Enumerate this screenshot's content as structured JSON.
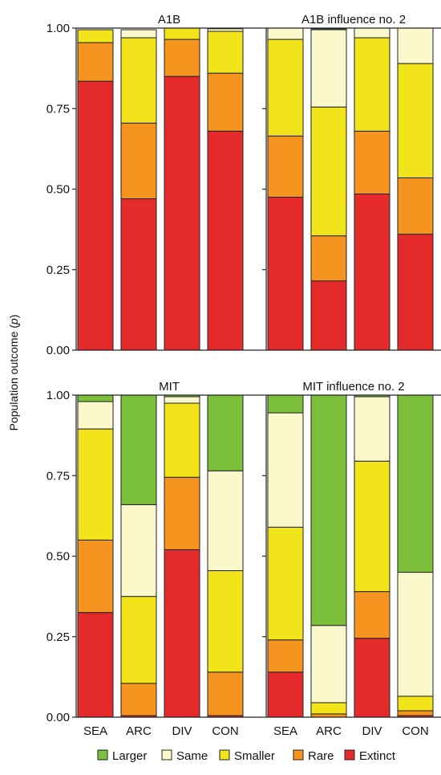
{
  "chart_data": {
    "type": "bar",
    "stacked": true,
    "ylabel_parts": [
      "Population outcome (",
      "p",
      ")"
    ],
    "categories": [
      "SEA",
      "ARC",
      "DIV",
      "CON"
    ],
    "yticks": [
      "0.00",
      "0.25",
      "0.50",
      "0.75",
      "1.00"
    ],
    "ylim": [
      0,
      1
    ],
    "legend": [
      {
        "name": "Larger",
        "color": "#7cbf3b"
      },
      {
        "name": "Same",
        "color": "#fbf8cc"
      },
      {
        "name": "Smaller",
        "color": "#f2e41b"
      },
      {
        "name": "Rare",
        "color": "#f5941f"
      },
      {
        "name": "Extinct",
        "color": "#e42a2a"
      }
    ],
    "panels": [
      {
        "title": "A1B",
        "series": [
          {
            "name": "Extinct",
            "values": [
              0.835,
              0.47,
              0.85,
              0.68
            ]
          },
          {
            "name": "Rare",
            "values": [
              0.12,
              0.235,
              0.115,
              0.18
            ]
          },
          {
            "name": "Smaller",
            "values": [
              0.04,
              0.265,
              0.035,
              0.13
            ]
          },
          {
            "name": "Same",
            "values": [
              0.0,
              0.025,
              0.0,
              0.008
            ]
          },
          {
            "name": "Larger",
            "values": [
              0.0,
              0.0,
              0.0,
              0.0
            ]
          }
        ]
      },
      {
        "title": "A1B influence no. 2",
        "series": [
          {
            "name": "Extinct",
            "values": [
              0.475,
              0.215,
              0.485,
              0.36
            ]
          },
          {
            "name": "Rare",
            "values": [
              0.19,
              0.14,
              0.195,
              0.175
            ]
          },
          {
            "name": "Smaller",
            "values": [
              0.3,
              0.4,
              0.29,
              0.355
            ]
          },
          {
            "name": "Same",
            "values": [
              0.035,
              0.24,
              0.03,
              0.11
            ]
          },
          {
            "name": "Larger",
            "values": [
              0.0,
              0.003,
              0.0,
              0.0
            ]
          }
        ]
      },
      {
        "title": "MIT",
        "series": [
          {
            "name": "Extinct",
            "values": [
              0.325,
              0.005,
              0.52,
              0.005
            ]
          },
          {
            "name": "Rare",
            "values": [
              0.225,
              0.1,
              0.225,
              0.135
            ]
          },
          {
            "name": "Smaller",
            "values": [
              0.345,
              0.27,
              0.23,
              0.315
            ]
          },
          {
            "name": "Same",
            "values": [
              0.085,
              0.285,
              0.02,
              0.31
            ]
          },
          {
            "name": "Larger",
            "values": [
              0.02,
              0.34,
              0.005,
              0.235
            ]
          }
        ]
      },
      {
        "title": "MIT influence no. 2",
        "series": [
          {
            "name": "Extinct",
            "values": [
              0.14,
              0.0,
              0.245,
              0.005
            ]
          },
          {
            "name": "Rare",
            "values": [
              0.1,
              0.01,
              0.145,
              0.015
            ]
          },
          {
            "name": "Smaller",
            "values": [
              0.35,
              0.035,
              0.405,
              0.045
            ]
          },
          {
            "name": "Same",
            "values": [
              0.355,
              0.24,
              0.2,
              0.385
            ]
          },
          {
            "name": "Larger",
            "values": [
              0.055,
              0.715,
              0.005,
              0.55
            ]
          }
        ]
      }
    ]
  }
}
